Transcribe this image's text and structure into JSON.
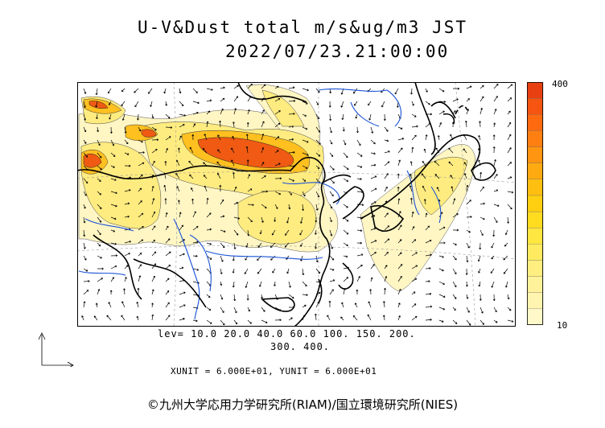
{
  "title": "U-V&Dust total m/s&ug/m3 JST",
  "datetime": "2022/07/23.21:00:00",
  "colorbar": {
    "max_label": "400",
    "min_label": "10",
    "colors": [
      "#fff8c8",
      "#fff4b0",
      "#fff29a",
      "#ffef80",
      "#ffeb60",
      "#ffe640",
      "#ffdc20",
      "#ffcf10",
      "#ffbf10",
      "#ffaa10",
      "#ff9510",
      "#ff8010",
      "#ff6a10",
      "#f55510",
      "#e84010"
    ]
  },
  "levels_line1": "lev= 10.0 20.0 40.0 60.0 100. 150. 200.",
  "levels_line2": "300. 400.",
  "units_line": "XUNIT = 6.000E+01, YUNIT = 6.000E+01",
  "copyright": "©九州大学応用力学研究所(RIAM)/国立環境研究所(NIES)",
  "colors": {
    "coast": "#000000",
    "rivers": "#1a52d6",
    "low_dust": "#fff6c0",
    "mid_dust": "#ffe34a",
    "high_dust": "#ff7a1a",
    "peak_dust": "#e84010"
  }
}
